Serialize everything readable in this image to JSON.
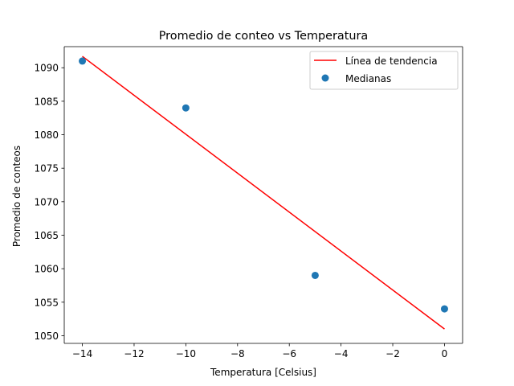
{
  "chart_data": {
    "type": "scatter",
    "title": "Promedio de conteo vs Temperatura",
    "xlabel": "Temperatura [Celsius]",
    "ylabel": "Promedio de conteos",
    "xlim": [
      -14.7,
      0.7
    ],
    "ylim": [
      1048.85,
      1093.15
    ],
    "xticks": [
      -14,
      -12,
      -10,
      -8,
      -6,
      -4,
      -2,
      0
    ],
    "xtick_labels": [
      "−14",
      "−12",
      "−10",
      "−8",
      "−6",
      "−4",
      "−2",
      "0"
    ],
    "yticks": [
      1050,
      1055,
      1060,
      1065,
      1070,
      1075,
      1080,
      1085,
      1090
    ],
    "ytick_labels": [
      "1050",
      "1055",
      "1060",
      "1065",
      "1070",
      "1075",
      "1080",
      "1085",
      "1090"
    ],
    "grid": false,
    "legend_position": "top-right",
    "series": [
      {
        "name": "Línea de tendencia",
        "kind": "line",
        "color": "#ff0000",
        "x": [
          -14,
          0
        ],
        "y": [
          1091.7,
          1051.0
        ]
      },
      {
        "name": "Medianas",
        "kind": "scatter",
        "color": "#1f77b4",
        "x": [
          -14,
          -10,
          -5,
          0
        ],
        "y": [
          1091,
          1084,
          1059,
          1054
        ]
      }
    ]
  }
}
